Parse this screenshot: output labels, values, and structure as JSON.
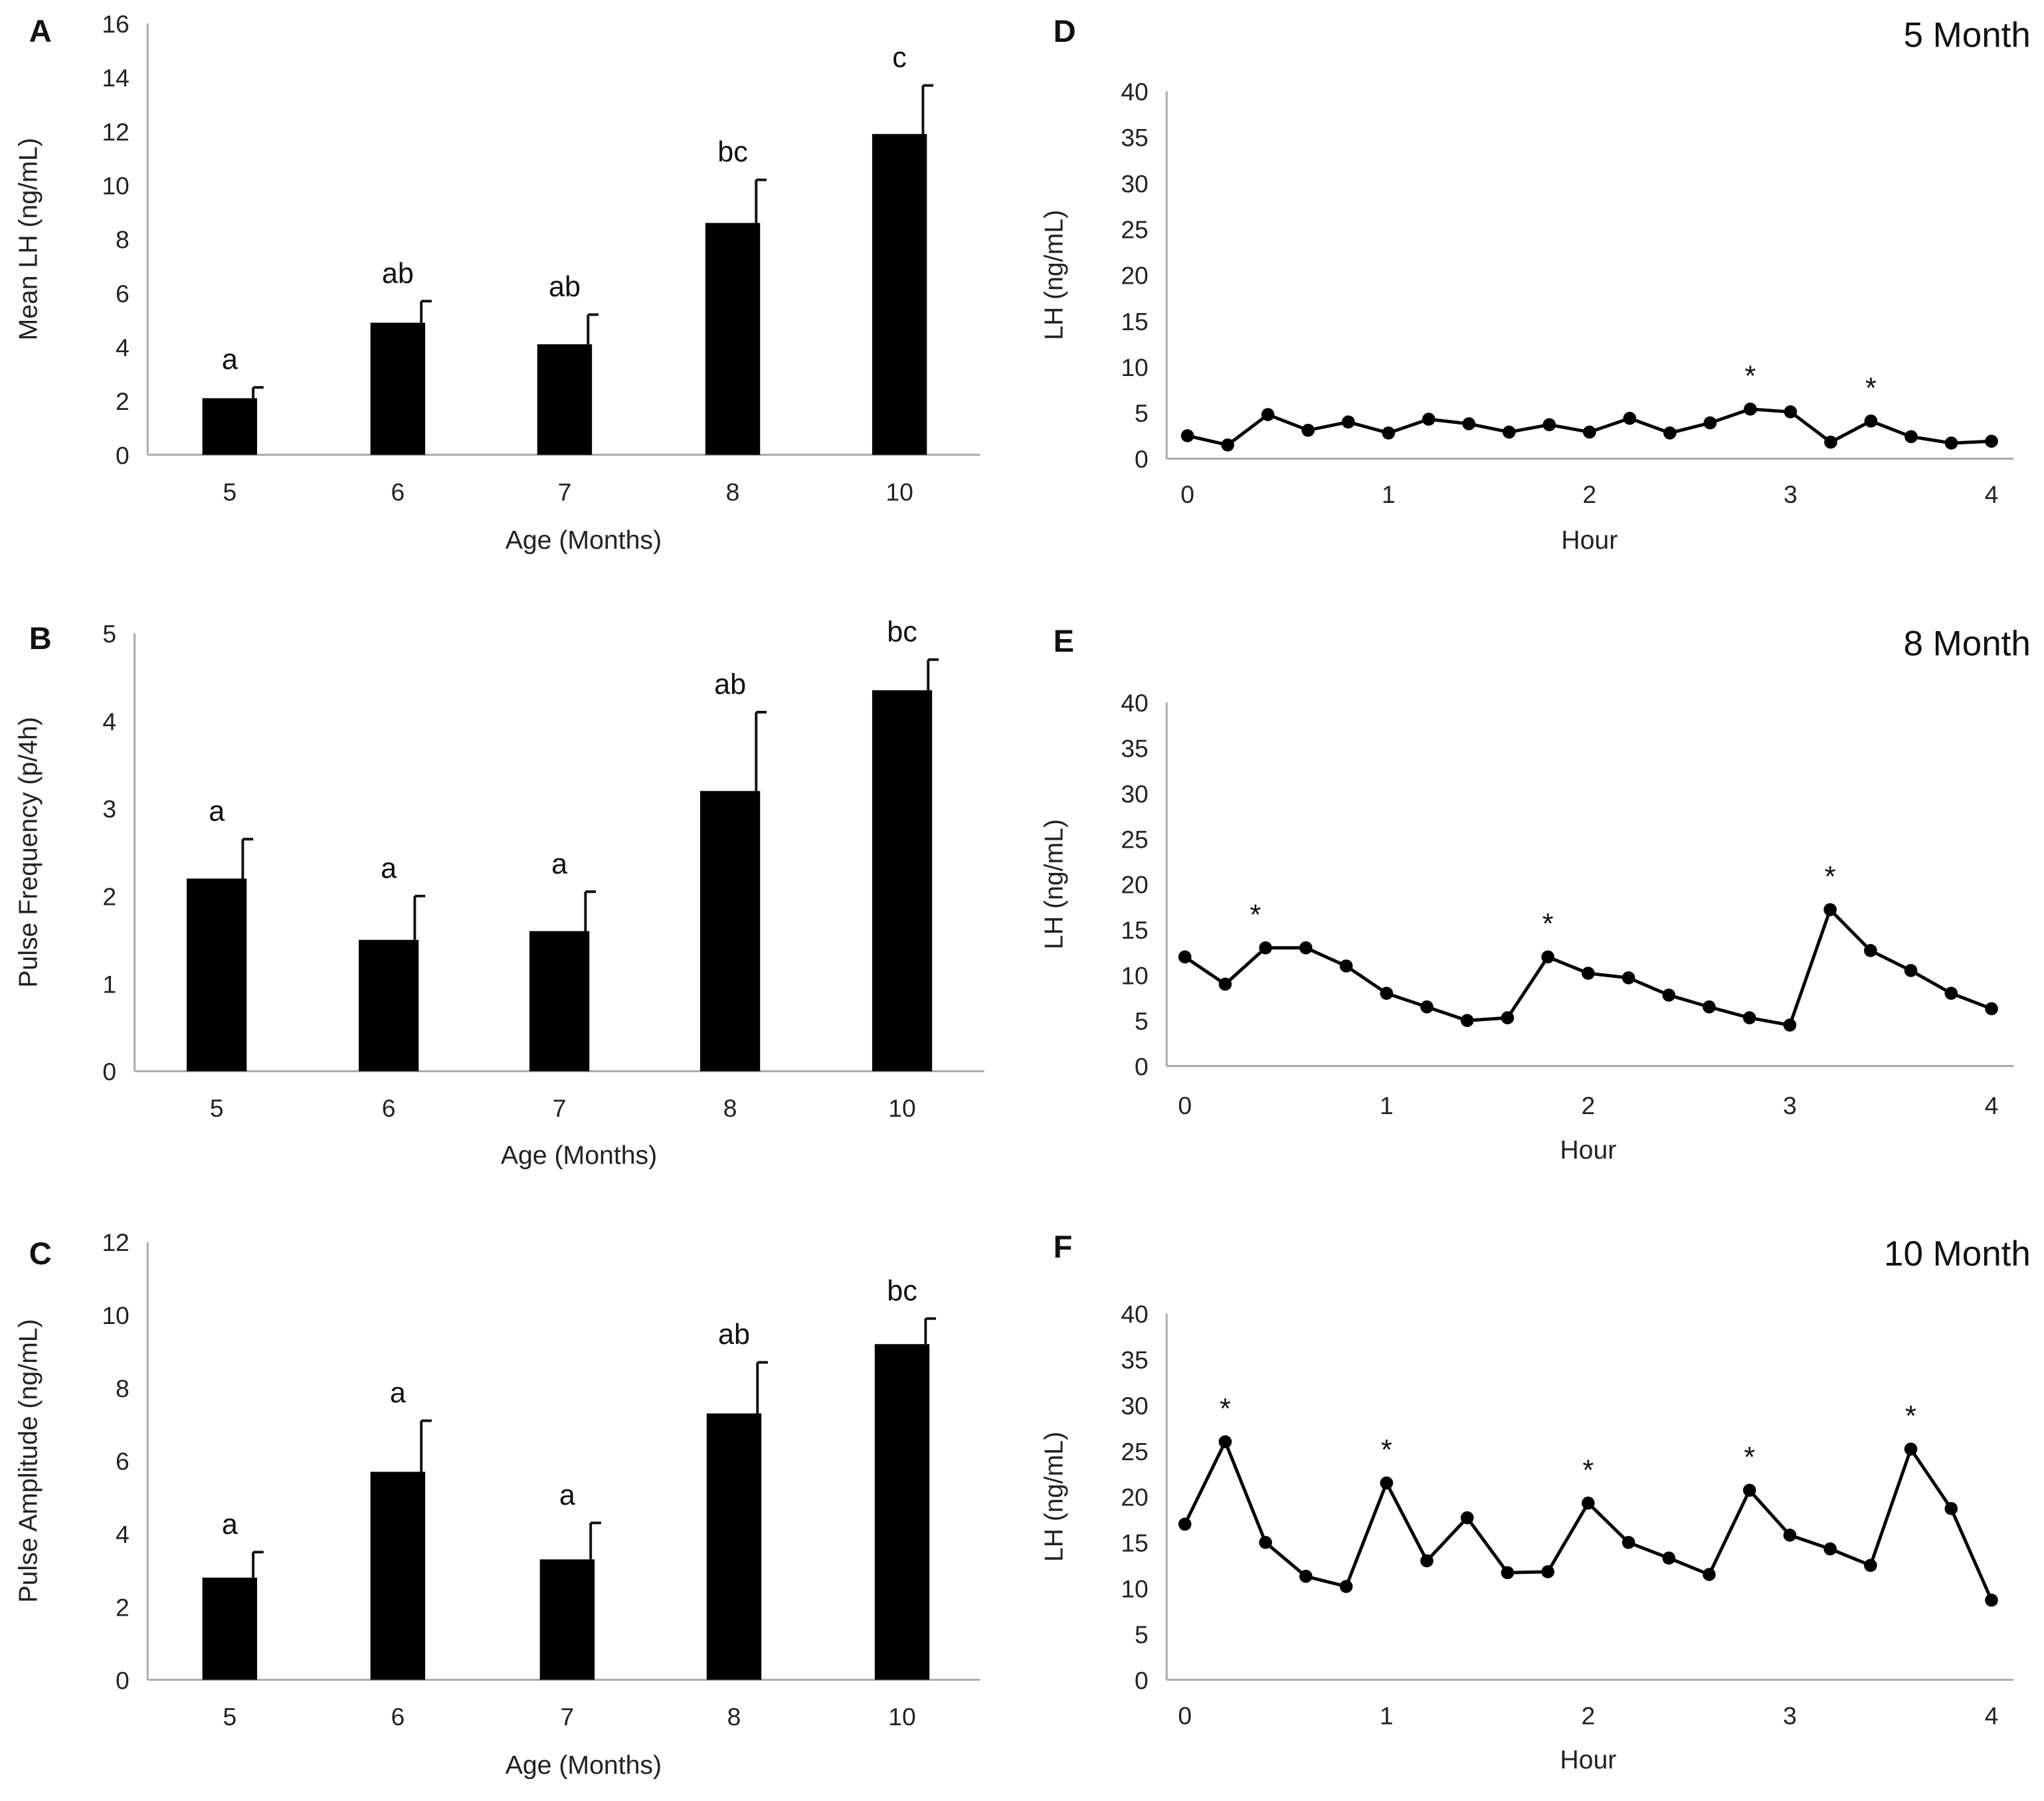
{
  "chart_data": [
    {
      "panel": "A",
      "type": "bar",
      "categories": [
        "5",
        "6",
        "7",
        "8",
        "10"
      ],
      "values": [
        2.1,
        4.9,
        4.1,
        8.6,
        11.9
      ],
      "errors": [
        0.4,
        0.8,
        1.1,
        1.6,
        1.8
      ],
      "labels": [
        "a",
        "ab",
        "ab",
        "bc",
        "c"
      ],
      "xlabel": "Age (Months)",
      "ylabel": "Mean LH (ng/mL)",
      "ylim": [
        0,
        16
      ],
      "yticks": [
        "0",
        "2",
        "4",
        "6",
        "8",
        "10",
        "12",
        "14",
        "16"
      ]
    },
    {
      "panel": "B",
      "type": "bar",
      "categories": [
        "5",
        "6",
        "7",
        "8",
        "10"
      ],
      "values": [
        2.2,
        1.5,
        1.6,
        3.2,
        4.35
      ],
      "errors": [
        0.45,
        0.5,
        0.45,
        0.9,
        0.35
      ],
      "labels": [
        "a",
        "a",
        "a",
        "ab",
        "bc"
      ],
      "xlabel": "Age (Months)",
      "ylabel": "Pulse Frequency (p/4h)",
      "ylim": [
        0,
        5
      ],
      "yticks": [
        "0",
        "1",
        "2",
        "3",
        "4",
        "5"
      ]
    },
    {
      "panel": "C",
      "type": "bar",
      "categories": [
        "5",
        "6",
        "7",
        "8",
        "10"
      ],
      "values": [
        2.8,
        5.7,
        3.3,
        7.3,
        9.2
      ],
      "errors": [
        0.7,
        1.4,
        1.0,
        1.4,
        0.7
      ],
      "labels": [
        "a",
        "a",
        "a",
        "ab",
        "bc"
      ],
      "xlabel": "Age  (Months)",
      "ylabel": "Pulse Amplitude (ng/mL)",
      "ylim": [
        0,
        12
      ],
      "yticks": [
        "0",
        "2",
        "4",
        "6",
        "8",
        "10",
        "12"
      ]
    },
    {
      "panel": "D",
      "type": "line",
      "title": "5 Month",
      "xlabel": "Hour",
      "ylabel": "LH (ng/mL)",
      "ylim": [
        0,
        40
      ],
      "xlim": [
        0,
        4
      ],
      "yticks": [
        "0",
        "5",
        "10",
        "15",
        "20",
        "25",
        "30",
        "35",
        "40"
      ],
      "xticks": [
        "0",
        "1",
        "2",
        "3",
        "4"
      ],
      "x_step": 0.2,
      "values": [
        2.5,
        1.5,
        4.8,
        3.1,
        4.0,
        2.8,
        4.3,
        3.8,
        2.9,
        3.7,
        2.9,
        4.4,
        2.8,
        3.9,
        5.4,
        5.1,
        1.8,
        4.1,
        2.4,
        1.7,
        1.9
      ],
      "pulse_markers": [
        {
          "x": 2.8,
          "label": "*"
        },
        {
          "x": 3.4,
          "label": "*"
        }
      ]
    },
    {
      "panel": "E",
      "type": "line",
      "title": "8 Month",
      "xlabel": "Hour",
      "ylabel": "LH (ng/mL)",
      "ylim": [
        0,
        40
      ],
      "xlim": [
        0,
        4
      ],
      "yticks": [
        "0",
        "5",
        "10",
        "15",
        "20",
        "25",
        "30",
        "35",
        "40"
      ],
      "xticks": [
        "0",
        "1",
        "2",
        "3",
        "4"
      ],
      "x_step": 0.2,
      "values": [
        12,
        9,
        13,
        13,
        11,
        8,
        6.5,
        5,
        5.3,
        12,
        10.2,
        9.7,
        7.8,
        6.5,
        5.3,
        4.5,
        17.2,
        12.7,
        10.5,
        8,
        6.3
      ],
      "pulse_markers": [
        {
          "x": 0.35,
          "label": "*"
        },
        {
          "x": 1.8,
          "label": "*"
        },
        {
          "x": 3.2,
          "label": "*"
        }
      ]
    },
    {
      "panel": "F",
      "type": "line",
      "title": "10 Month",
      "xlabel": "Hour",
      "ylabel": "LH (ng/mL)",
      "ylim": [
        0,
        40
      ],
      "xlim": [
        0,
        4
      ],
      "yticks": [
        "0",
        "5",
        "10",
        "15",
        "20",
        "25",
        "30",
        "35",
        "40"
      ],
      "xticks": [
        "0",
        "1",
        "2",
        "3",
        "4"
      ],
      "x_step": 0.2,
      "values": [
        17,
        26,
        15,
        11.3,
        10.2,
        21.5,
        13,
        17.7,
        11.7,
        11.8,
        19.3,
        15,
        13.3,
        11.5,
        20.7,
        15.8,
        14.3,
        12.5,
        25.2,
        18.7,
        8.7
      ],
      "pulse_markers": [
        {
          "x": 0.2,
          "label": "*"
        },
        {
          "x": 1.0,
          "label": "*"
        },
        {
          "x": 2.0,
          "label": "*"
        },
        {
          "x": 2.8,
          "label": "*"
        },
        {
          "x": 3.6,
          "label": "*"
        }
      ]
    }
  ]
}
